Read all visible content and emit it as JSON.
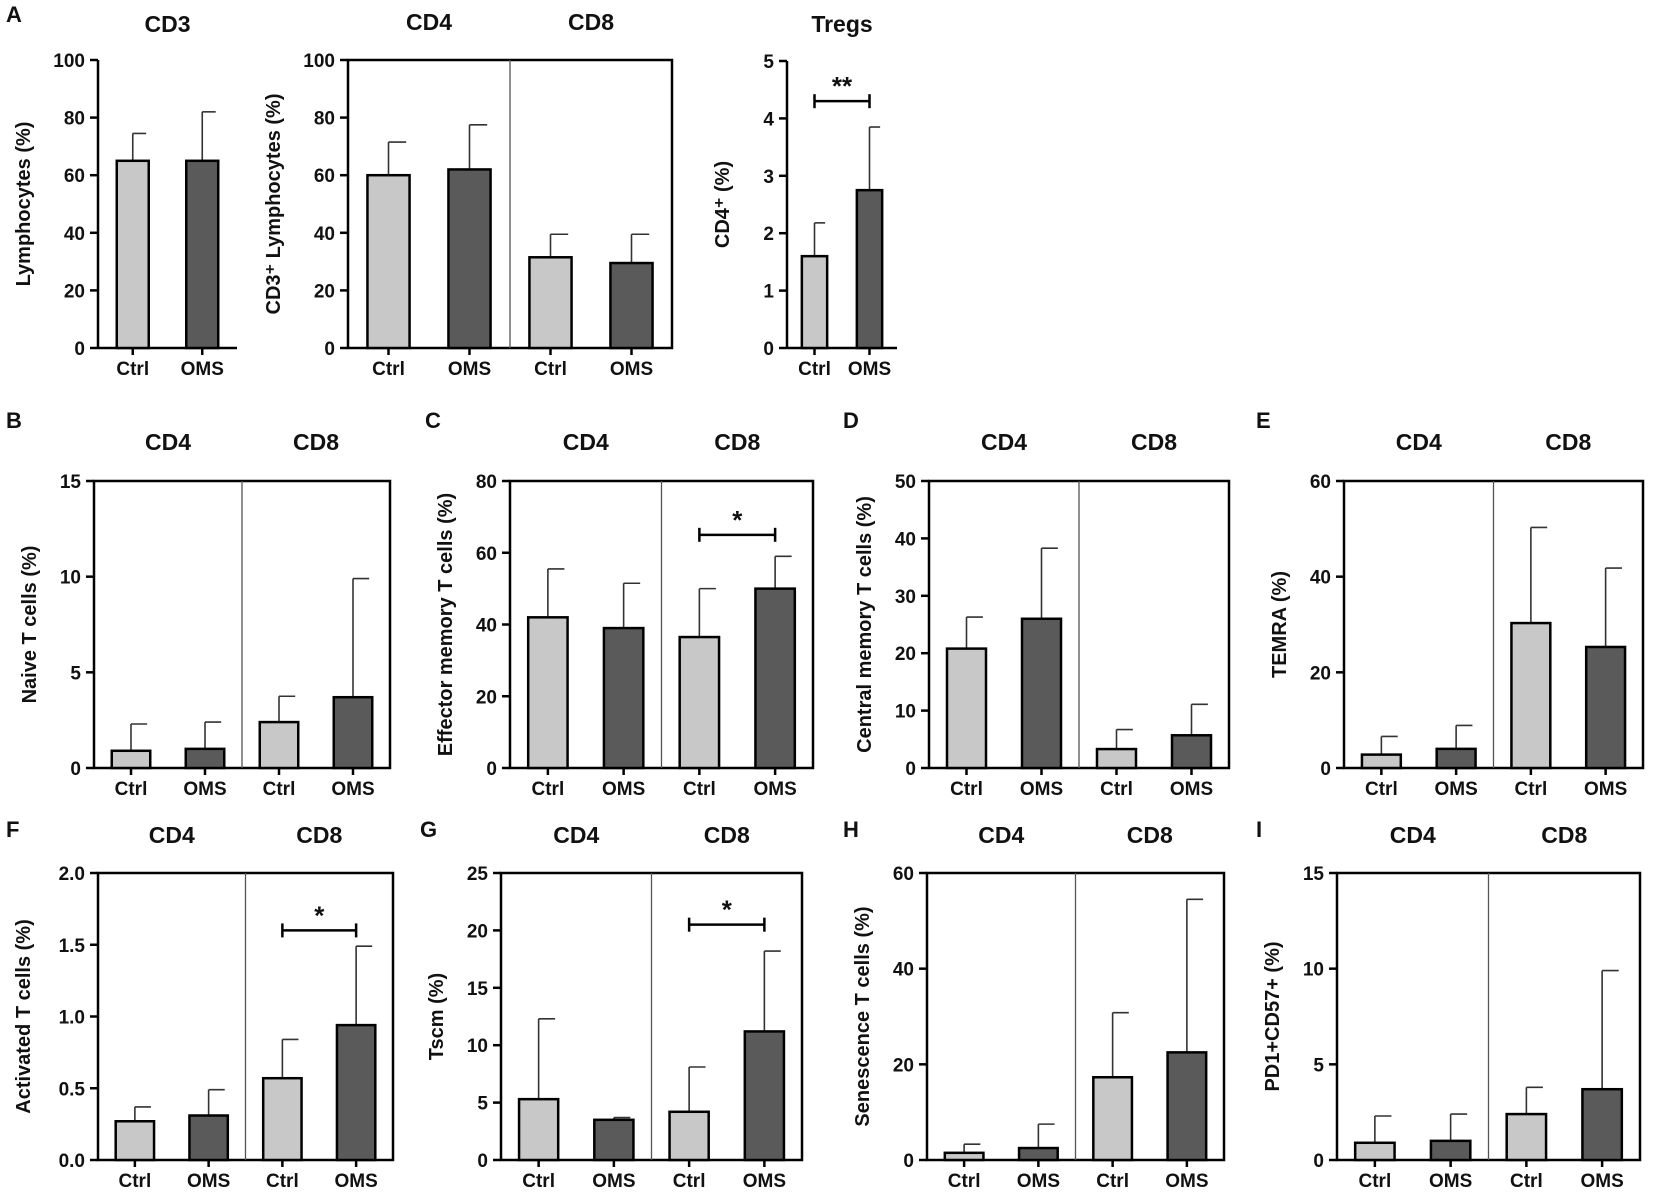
{
  "colors": {
    "ctrl": "#c8c8c8",
    "oms": "#5a5a5a",
    "axis": "#000000",
    "divider": "#555555"
  },
  "chart_data": [
    {
      "id": "A1",
      "panel_label": "A",
      "type": "bar",
      "title": "CD3",
      "group_titles": [],
      "ylabel": "Lymphocytes (%)",
      "ylim": [
        0,
        100
      ],
      "yticks": [
        0,
        20,
        40,
        60,
        80,
        100
      ],
      "categories": [
        "Ctrl",
        "OMS"
      ],
      "values": [
        65,
        65
      ],
      "errors": [
        9.5,
        17
      ],
      "divider_after": null,
      "box": false,
      "significance": []
    },
    {
      "id": "A2",
      "panel_label": "",
      "type": "bar",
      "title": "",
      "group_titles": [
        "CD4",
        "CD8"
      ],
      "ylabel": "CD3⁺ Lymphocytes (%)",
      "ylim": [
        0,
        100
      ],
      "yticks": [
        0,
        20,
        40,
        60,
        80,
        100
      ],
      "categories": [
        "Ctrl",
        "OMS",
        "Ctrl",
        "OMS"
      ],
      "values": [
        60,
        62,
        31.5,
        29.5
      ],
      "errors": [
        11.5,
        15.5,
        8,
        10
      ],
      "divider_after": 2,
      "box": true,
      "significance": []
    },
    {
      "id": "A3",
      "panel_label": "",
      "type": "bar",
      "title": "Tregs",
      "group_titles": [],
      "ylabel": "CD4⁺ (%)",
      "ylim": [
        0,
        5
      ],
      "yticks": [
        0,
        1,
        2,
        3,
        4,
        5
      ],
      "categories": [
        "Ctrl",
        "OMS"
      ],
      "values": [
        1.6,
        2.75
      ],
      "errors": [
        0.58,
        1.1
      ],
      "divider_after": null,
      "box": false,
      "significance": [
        {
          "from": 0,
          "to": 1,
          "y": 4.3,
          "label": "**"
        }
      ]
    },
    {
      "id": "B",
      "panel_label": "B",
      "type": "bar",
      "title": "",
      "group_titles": [
        "CD4",
        "CD8"
      ],
      "ylabel": "Naive T cells (%)",
      "ylim": [
        0,
        15
      ],
      "yticks": [
        0,
        5,
        10,
        15
      ],
      "categories": [
        "Ctrl",
        "OMS",
        "Ctrl",
        "OMS"
      ],
      "values": [
        0.9,
        1.0,
        2.4,
        3.7
      ],
      "errors": [
        1.4,
        1.4,
        1.35,
        6.2
      ],
      "divider_after": 2,
      "box": true,
      "significance": []
    },
    {
      "id": "C",
      "panel_label": "C",
      "type": "bar",
      "title": "",
      "group_titles": [
        "CD4",
        "CD8"
      ],
      "ylabel": "Effector memory T cells (%)",
      "ylim": [
        0,
        80
      ],
      "yticks": [
        0,
        20,
        40,
        60,
        80
      ],
      "categories": [
        "Ctrl",
        "OMS",
        "Ctrl",
        "OMS"
      ],
      "values": [
        42,
        39,
        36.5,
        50
      ],
      "errors": [
        13.5,
        12.5,
        13.5,
        9
      ],
      "divider_after": 2,
      "box": true,
      "significance": [
        {
          "from": 2,
          "to": 3,
          "y": 65,
          "label": "*"
        }
      ]
    },
    {
      "id": "D",
      "panel_label": "D",
      "type": "bar",
      "title": "",
      "group_titles": [
        "CD4",
        "CD8"
      ],
      "ylabel": "Central memory T cells (%)",
      "ylim": [
        0,
        50
      ],
      "yticks": [
        0,
        10,
        20,
        30,
        40,
        50
      ],
      "categories": [
        "Ctrl",
        "OMS",
        "Ctrl",
        "OMS"
      ],
      "values": [
        20.8,
        26,
        3.3,
        5.7
      ],
      "errors": [
        5.5,
        12.3,
        3.4,
        5.4
      ],
      "divider_after": 2,
      "box": true,
      "significance": []
    },
    {
      "id": "E",
      "panel_label": "E",
      "type": "bar",
      "title": "",
      "group_titles": [
        "CD4",
        "CD8"
      ],
      "ylabel": "TEMRA (%)",
      "ylim": [
        0,
        60
      ],
      "yticks": [
        0,
        20,
        40,
        60
      ],
      "categories": [
        "Ctrl",
        "OMS",
        "Ctrl",
        "OMS"
      ],
      "values": [
        2.8,
        4,
        30.3,
        25.3
      ],
      "errors": [
        3.8,
        4.9,
        20,
        16.5
      ],
      "divider_after": 2,
      "box": true,
      "significance": []
    },
    {
      "id": "F",
      "panel_label": "F",
      "type": "bar",
      "title": "",
      "group_titles": [
        "CD4",
        "CD8"
      ],
      "ylabel": "Activated T cells (%)",
      "ylim": [
        0,
        2.0
      ],
      "yticks": [
        0,
        0.5,
        1.0,
        1.5,
        2.0
      ],
      "ytick_labels": [
        "0.0",
        "0.5",
        "1.0",
        "1.5",
        "2.0"
      ],
      "categories": [
        "Ctrl",
        "OMS",
        "Ctrl",
        "OMS"
      ],
      "values": [
        0.27,
        0.31,
        0.57,
        0.94
      ],
      "errors": [
        0.1,
        0.18,
        0.27,
        0.55
      ],
      "divider_after": 2,
      "box": true,
      "significance": [
        {
          "from": 2,
          "to": 3,
          "y": 1.6,
          "label": "*"
        }
      ]
    },
    {
      "id": "G",
      "panel_label": "G",
      "type": "bar",
      "title": "",
      "group_titles": [
        "CD4",
        "CD8"
      ],
      "ylabel": "Tscm (%)",
      "ylim": [
        0,
        25
      ],
      "yticks": [
        0,
        5,
        10,
        15,
        20,
        25
      ],
      "categories": [
        "Ctrl",
        "OMS",
        "Ctrl",
        "OMS"
      ],
      "values": [
        5.3,
        3.5,
        4.2,
        11.2
      ],
      "errors": [
        7,
        0.2,
        3.9,
        7
      ],
      "divider_after": 2,
      "box": true,
      "significance": [
        {
          "from": 2,
          "to": 3,
          "y": 20.5,
          "label": "*"
        }
      ]
    },
    {
      "id": "H",
      "panel_label": "H",
      "type": "bar",
      "title": "",
      "group_titles": [
        "CD4",
        "CD8"
      ],
      "ylabel": "Senescence T cells (%)",
      "ylim": [
        0,
        60
      ],
      "yticks": [
        0,
        20,
        40,
        60
      ],
      "categories": [
        "Ctrl",
        "OMS",
        "Ctrl",
        "OMS"
      ],
      "values": [
        1.5,
        2.5,
        17.3,
        22.5
      ],
      "errors": [
        1.8,
        5,
        13.5,
        32
      ],
      "divider_after": 2,
      "box": true,
      "significance": []
    },
    {
      "id": "I",
      "panel_label": "I",
      "type": "bar",
      "title": "",
      "group_titles": [
        "CD4",
        "CD8"
      ],
      "ylabel": "PD1+CD57+ (%)",
      "ylim": [
        0,
        15
      ],
      "yticks": [
        0,
        5,
        10,
        15
      ],
      "categories": [
        "Ctrl",
        "OMS",
        "Ctrl",
        "OMS"
      ],
      "values": [
        0.9,
        1.0,
        2.4,
        3.7
      ],
      "errors": [
        1.4,
        1.4,
        1.4,
        6.2
      ],
      "divider_after": 2,
      "box": true,
      "significance": []
    }
  ]
}
